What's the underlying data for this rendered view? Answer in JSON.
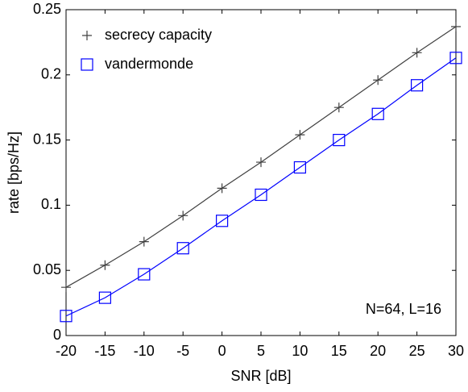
{
  "chart_data": {
    "type": "line",
    "xlabel": "SNR [dB]",
    "ylabel": "rate [bps/Hz]",
    "annotation": "N=64, L=16",
    "x": [
      -20,
      -15,
      -10,
      -5,
      0,
      5,
      10,
      15,
      20,
      25,
      30
    ],
    "series": [
      {
        "name": "secrecy capacity",
        "color": "#404040",
        "marker": "plus",
        "values": [
          0.037,
          0.054,
          0.072,
          0.092,
          0.113,
          0.133,
          0.154,
          0.175,
          0.196,
          0.217,
          0.237
        ]
      },
      {
        "name": "vandermonde",
        "color": "#0000ff",
        "marker": "square",
        "values": [
          0.015,
          0.029,
          0.047,
          0.067,
          0.088,
          0.108,
          0.129,
          0.15,
          0.17,
          0.192,
          0.213
        ]
      }
    ],
    "xlim": [
      -20,
      30
    ],
    "xticks": [
      -20,
      -15,
      -10,
      -5,
      0,
      5,
      10,
      15,
      20,
      25,
      30
    ],
    "ylim": [
      0,
      0.25
    ],
    "yticks": [
      0,
      0.05,
      0.1,
      0.15,
      0.2,
      0.25
    ],
    "grid": false,
    "legend": "top-left"
  }
}
